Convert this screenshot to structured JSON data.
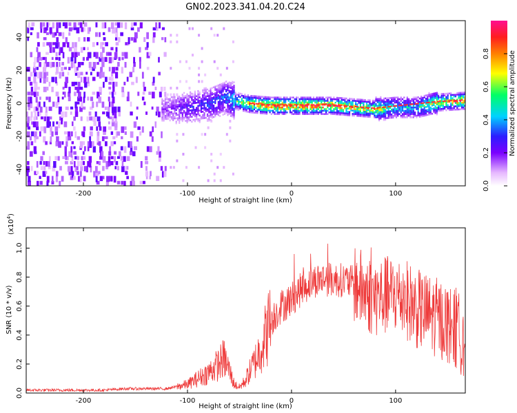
{
  "figure_title": "GN02.2023.341.04.20.C24",
  "colors": {
    "snr_line": "#ee3a3a",
    "frame": "#000000",
    "signal_track": "#ff2f2f",
    "colormap": [
      "#ffffff",
      "#f2d8f6",
      "#7a00ff",
      "#2c1dff",
      "#00d2ff",
      "#00ff66",
      "#ffff00",
      "#ff8000",
      "#ff1e1e",
      "#ff0f90"
    ]
  },
  "chart_data": [
    {
      "type": "heatmap",
      "xlabel": "Height of straight line (km)",
      "ylabel": "Frequency (Hz)",
      "xlim": [
        -255,
        167
      ],
      "ylim": [
        -50,
        50
      ],
      "xticks": [
        -200,
        -100,
        0,
        100
      ],
      "yticks": [
        -40,
        -20,
        0,
        20,
        40
      ],
      "grid": false,
      "colorbar": {
        "label": "Normalized spectral amplitude",
        "range": [
          0.0,
          1.0
        ],
        "ticks": [
          "0.0",
          "0.2",
          "0.4",
          "0.6",
          "0.8"
        ]
      },
      "signal_track": [
        {
          "x": -120,
          "y": -3,
          "amplitude": 0.2
        },
        {
          "x": -100,
          "y": -2,
          "amplitude": 0.3
        },
        {
          "x": -80,
          "y": 0,
          "amplitude": 0.35
        },
        {
          "x": -65,
          "y": 4,
          "amplitude": 0.4
        },
        {
          "x": -55,
          "y": 2,
          "amplitude": 0.55
        },
        {
          "x": -40,
          "y": 0,
          "amplitude": 0.9
        },
        {
          "x": -20,
          "y": -1,
          "amplitude": 0.95
        },
        {
          "x": 0,
          "y": -1,
          "amplitude": 0.95
        },
        {
          "x": 20,
          "y": -1,
          "amplitude": 0.95
        },
        {
          "x": 40,
          "y": -1,
          "amplitude": 0.95
        },
        {
          "x": 60,
          "y": -2,
          "amplitude": 0.85
        },
        {
          "x": 80,
          "y": -3,
          "amplitude": 0.8
        },
        {
          "x": 100,
          "y": -2,
          "amplitude": 0.5
        },
        {
          "x": 120,
          "y": -2,
          "amplitude": 0.5
        },
        {
          "x": 140,
          "y": 1,
          "amplitude": 0.8
        },
        {
          "x": 165,
          "y": 2,
          "amplitude": 0.9
        }
      ]
    },
    {
      "type": "line",
      "xlabel": "Height of straight line (km)",
      "ylabel": "SNR (10 * v/v)",
      "scale_label": "(x10",
      "scale_exponent": "4",
      "scale_suffix": ")",
      "xlim": [
        -255,
        167
      ],
      "ylim": [
        0.0,
        1.14
      ],
      "xticks": [
        -200,
        -100,
        0,
        100
      ],
      "yticks": [
        "0.0",
        "0.2",
        "0.4",
        "0.6",
        "0.8",
        "1.0"
      ],
      "grid": false,
      "series": [
        {
          "x": [
            -255,
            -220,
            -180,
            -160,
            -150,
            -120,
            -100,
            -90,
            -80,
            -70,
            -65,
            -60,
            -55,
            -50,
            -45,
            -40,
            -35,
            -30,
            -25,
            -20,
            -15,
            -10,
            -5,
            0,
            10,
            20,
            30,
            40,
            50,
            60,
            70,
            80,
            90,
            100,
            110,
            120,
            130,
            140,
            150,
            160,
            167
          ],
          "y": [
            0.02,
            0.02,
            0.02,
            0.03,
            0.03,
            0.03,
            0.06,
            0.1,
            0.14,
            0.2,
            0.24,
            0.16,
            0.06,
            0.04,
            0.08,
            0.15,
            0.22,
            0.3,
            0.4,
            0.5,
            0.55,
            0.6,
            0.62,
            0.65,
            0.72,
            0.77,
            0.79,
            0.78,
            0.78,
            0.76,
            0.7,
            0.66,
            0.67,
            0.68,
            0.65,
            0.58,
            0.55,
            0.52,
            0.48,
            0.42,
            0.38
          ]
        }
      ]
    }
  ]
}
